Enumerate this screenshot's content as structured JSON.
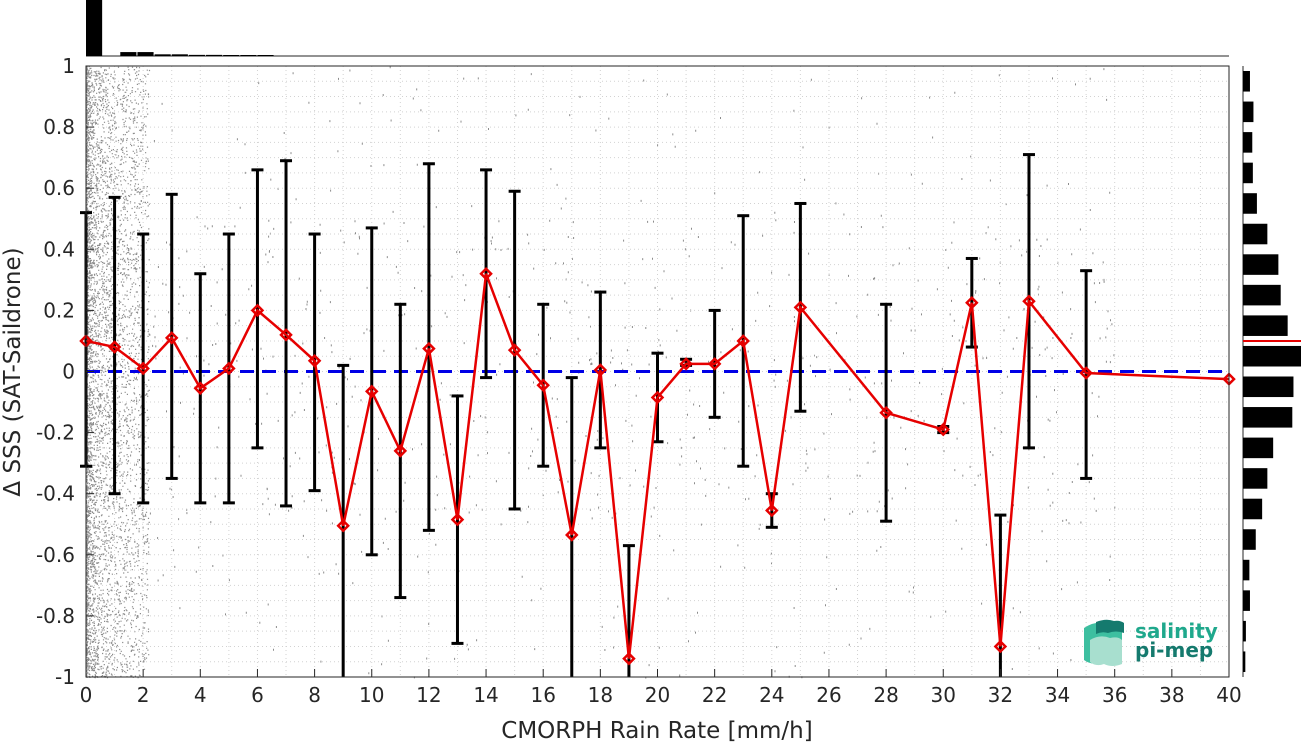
{
  "chart_data": {
    "type": "line",
    "xlabel": "CMORPH Rain Rate [mm/h]",
    "ylabel": "Δ SSS (SAT-Saildrone)",
    "xlim": [
      0,
      40
    ],
    "ylim": [
      -1,
      1
    ],
    "x_ticks": [
      0,
      2,
      4,
      6,
      8,
      10,
      12,
      14,
      16,
      18,
      20,
      22,
      24,
      26,
      28,
      30,
      32,
      34,
      36,
      38,
      40
    ],
    "y_ticks": [
      1,
      0.8,
      0.6,
      0.4,
      0.2,
      0,
      -0.2,
      -0.4,
      -0.6,
      -0.8,
      -1
    ],
    "y_tick_labels": [
      "1",
      "0.8",
      "0.6",
      "0.4",
      "0.2",
      "0",
      "-0.2",
      "-0.4",
      "-0.6",
      "-0.8",
      "-1"
    ],
    "grid": true,
    "reference_line": {
      "y": 0,
      "style": "dashed",
      "color": "#0000e6"
    },
    "series": [
      {
        "color": "#e60000",
        "x": [
          0,
          1,
          2,
          3,
          4,
          5,
          6,
          7,
          8,
          9,
          10,
          11,
          12,
          13,
          14,
          15,
          16,
          17,
          18,
          19,
          20,
          21,
          22,
          23,
          24,
          25,
          28,
          30,
          31,
          32,
          33,
          35,
          40
        ],
        "y": [
          0.1,
          0.08,
          0.01,
          0.11,
          -0.055,
          0.01,
          0.2,
          0.12,
          0.035,
          -0.505,
          -0.065,
          -0.26,
          0.075,
          -0.485,
          0.32,
          0.07,
          -0.045,
          -0.535,
          0.005,
          -0.94,
          -0.085,
          0.025,
          0.025,
          0.1,
          -0.455,
          0.21,
          -0.135,
          -0.19,
          0.225,
          -0.9,
          0.23,
          -0.005,
          -0.025
        ],
        "err_low": [
          -0.31,
          -0.4,
          -0.43,
          -0.35,
          -0.43,
          -0.43,
          -0.25,
          -0.44,
          -0.39,
          -1.0,
          -0.6,
          -0.74,
          -0.52,
          -0.89,
          -0.02,
          -0.45,
          -0.31,
          -1.0,
          -0.25,
          -1.0,
          -0.23,
          0.02,
          -0.15,
          -0.31,
          -0.51,
          -0.13,
          -0.49,
          -0.2,
          0.08,
          -1.0,
          -0.25,
          -0.35,
          null
        ],
        "err_high": [
          0.52,
          0.57,
          0.45,
          0.58,
          0.32,
          0.45,
          0.66,
          0.69,
          0.45,
          0.02,
          0.47,
          0.22,
          0.68,
          -0.08,
          0.66,
          0.59,
          0.22,
          -0.02,
          0.26,
          -0.57,
          0.06,
          0.04,
          0.2,
          0.51,
          -0.4,
          0.55,
          0.22,
          -0.18,
          0.37,
          -0.47,
          0.71,
          0.33,
          null
        ]
      }
    ],
    "top_histogram": {
      "bin_width": 0.6,
      "counts": [
        1.0,
        0.0,
        0.07,
        0.07,
        0.03,
        0.03,
        0.02,
        0.02,
        0.01,
        0.01,
        0.005
      ]
    },
    "right_histogram": {
      "bin_width": 0.1,
      "y_centers": [
        0.95,
        0.85,
        0.75,
        0.65,
        0.55,
        0.45,
        0.35,
        0.25,
        0.15,
        0.05,
        -0.05,
        -0.15,
        -0.25,
        -0.35,
        -0.45,
        -0.55,
        -0.65,
        -0.75,
        -0.85,
        -0.95
      ],
      "counts": [
        0.12,
        0.18,
        0.16,
        0.17,
        0.24,
        0.42,
        0.61,
        0.65,
        0.77,
        1.0,
        0.87,
        0.85,
        0.52,
        0.42,
        0.33,
        0.22,
        0.11,
        0.12,
        0.05,
        0.04
      ],
      "median_line_y": 0.1
    }
  },
  "logo": {
    "line1": "salinity",
    "line2": "pi-mep",
    "color1": "#1fa88c",
    "color2": "#157a6e"
  }
}
